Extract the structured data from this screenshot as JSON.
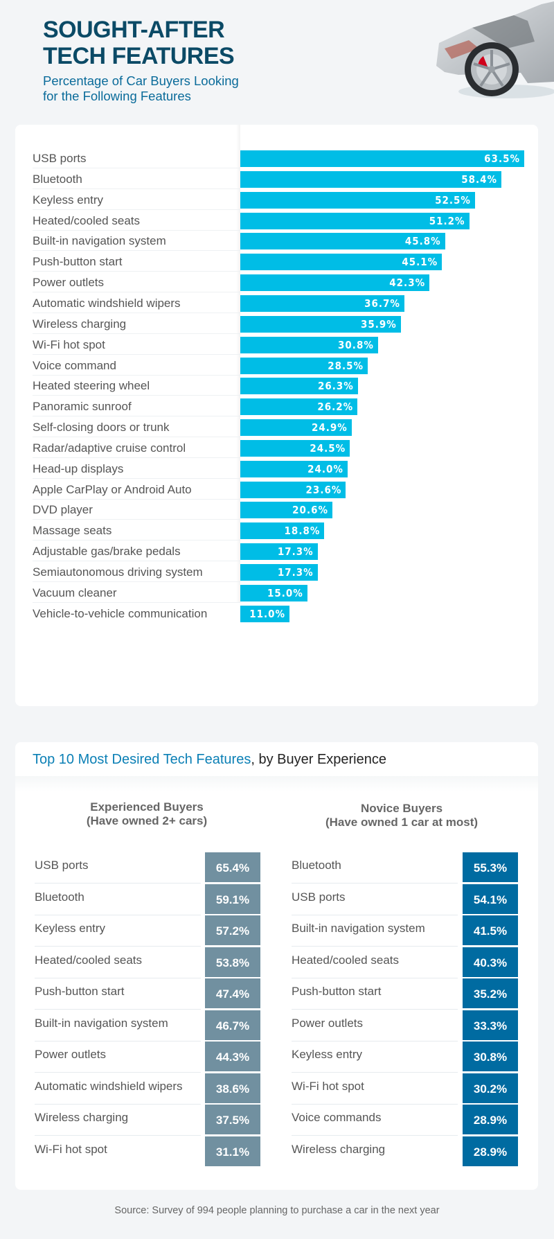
{
  "header": {
    "title_line1": "SOUGHT-AFTER",
    "title_line2": "TECH FEATURES",
    "subtitle_line1": "Percentage of Car Buyers Looking",
    "subtitle_line2": "for the Following Features",
    "image": "car-xray-illustration"
  },
  "colors": {
    "title": "#0b4a66",
    "subtitle": "#0a6b9a",
    "bar": "#00bde6",
    "experienced": "#7190a0",
    "novice": "#006ba1",
    "background": "#f3f5f7"
  },
  "chart_data": [
    {
      "type": "bar",
      "orientation": "horizontal",
      "title": "Sought-After Tech Features",
      "subtitle": "Percentage of Car Buyers Looking for the Following Features",
      "categories": [
        "USB ports",
        "Bluetooth",
        "Keyless entry",
        "Heated/cooled seats",
        "Built-in navigation system",
        "Push-button start",
        "Power outlets",
        "Automatic windshield wipers",
        "Wireless charging",
        "Wi-Fi hot spot",
        "Voice command",
        "Heated steering wheel",
        "Panoramic sunroof",
        "Self-closing doors or trunk",
        "Radar/adaptive cruise control",
        "Head-up displays",
        "Apple CarPlay or Android Auto",
        "DVD player",
        "Massage seats",
        "Adjustable gas/brake pedals",
        "Semiautonomous driving system",
        "Vacuum cleaner",
        "Vehicle-to-vehicle communication"
      ],
      "values": [
        63.5,
        58.4,
        52.5,
        51.2,
        45.8,
        45.1,
        42.3,
        36.7,
        35.9,
        30.8,
        28.5,
        26.3,
        26.2,
        24.9,
        24.5,
        24.0,
        23.6,
        20.6,
        18.8,
        17.3,
        17.3,
        15.0,
        11.0
      ],
      "labels": [
        "63.5%",
        "58.4%",
        "52.5%",
        "51.2%",
        "45.8%",
        "45.1%",
        "42.3%",
        "36.7%",
        "35.9%",
        "30.8%",
        "28.5%",
        "26.3%",
        "26.2%",
        "24.9%",
        "24.5%",
        "24.0%",
        "23.6%",
        "20.6%",
        "18.8%",
        "17.3%",
        "17.3%",
        "15.0%",
        "11.0%"
      ],
      "unit": "%",
      "xlabel": "",
      "ylabel": "",
      "grid": false
    },
    {
      "type": "table",
      "title_highlight": "Top 10 Most Desired Tech Features",
      "title_rest": ", by Buyer Experience",
      "groups": [
        {
          "name": "Experienced Buyers",
          "note": "(Have owned 2+ cars)",
          "rows": [
            {
              "feature": "USB ports",
              "value": "65.4%"
            },
            {
              "feature": "Bluetooth",
              "value": "59.1%"
            },
            {
              "feature": "Keyless entry",
              "value": "57.2%"
            },
            {
              "feature": "Heated/cooled seats",
              "value": "53.8%"
            },
            {
              "feature": "Push-button start",
              "value": "47.4%"
            },
            {
              "feature": "Built-in navigation system",
              "value": "46.7%"
            },
            {
              "feature": "Power outlets",
              "value": "44.3%"
            },
            {
              "feature": "Automatic windshield wipers",
              "value": "38.6%"
            },
            {
              "feature": "Wireless charging",
              "value": "37.5%"
            },
            {
              "feature": "Wi-Fi hot spot",
              "value": "31.1%"
            }
          ]
        },
        {
          "name": "Novice Buyers",
          "note": "(Have owned 1 car at most)",
          "rows": [
            {
              "feature": "Bluetooth",
              "value": "55.3%"
            },
            {
              "feature": "USB ports",
              "value": "54.1%"
            },
            {
              "feature": "Built-in navigation system",
              "value": "41.5%"
            },
            {
              "feature": "Heated/cooled seats",
              "value": "40.3%"
            },
            {
              "feature": "Push-button start",
              "value": "35.2%"
            },
            {
              "feature": "Power outlets",
              "value": "33.3%"
            },
            {
              "feature": "Keyless entry",
              "value": "30.8%"
            },
            {
              "feature": "Wi-Fi hot spot",
              "value": "30.2%"
            },
            {
              "feature": "Voice commands",
              "value": "28.9%"
            },
            {
              "feature": "Wireless charging",
              "value": "28.9%"
            }
          ]
        }
      ]
    }
  ],
  "footer": {
    "source": "Source: Survey of 994 people planning to purchase a car in the next year"
  }
}
